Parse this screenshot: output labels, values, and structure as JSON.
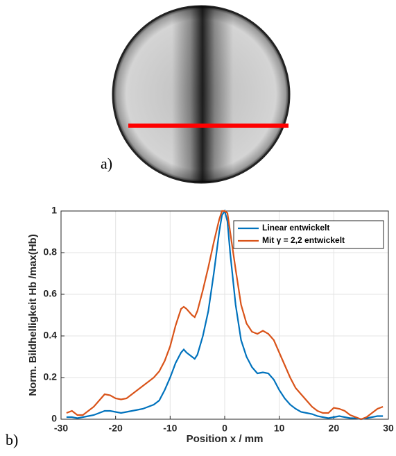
{
  "panel_labels": [
    "a)",
    "b)"
  ],
  "chart_data": {
    "type": "line",
    "xlabel": "Position x / mm",
    "ylabel": "Norm. Bildhelligkeit Hb /max(Hb)",
    "x": [
      -29,
      -28,
      -27,
      -26,
      -25,
      -24,
      -23,
      -22,
      -21,
      -20,
      -19,
      -18,
      -17,
      -16,
      -15,
      -14,
      -13,
      -12,
      -11,
      -10,
      -9,
      -8,
      -7.5,
      -7,
      -6,
      -5.5,
      -5,
      -4,
      -3,
      -2,
      -1,
      -0.5,
      0,
      0.5,
      1,
      2,
      3,
      4,
      5,
      6,
      7,
      8,
      9,
      10,
      11,
      12,
      13,
      14,
      15,
      16,
      17,
      18,
      19,
      20,
      21,
      22,
      23,
      24,
      25,
      26,
      27,
      28,
      29
    ],
    "series": [
      {
        "name": "Linear entwickelt",
        "color": "#0072bd",
        "values": [
          0.01,
          0.01,
          0.005,
          0.01,
          0.015,
          0.02,
          0.03,
          0.04,
          0.04,
          0.035,
          0.03,
          0.035,
          0.04,
          0.045,
          0.05,
          0.06,
          0.07,
          0.09,
          0.14,
          0.2,
          0.27,
          0.32,
          0.335,
          0.32,
          0.3,
          0.29,
          0.31,
          0.4,
          0.52,
          0.7,
          0.9,
          0.98,
          1,
          0.95,
          0.8,
          0.55,
          0.38,
          0.3,
          0.25,
          0.22,
          0.225,
          0.22,
          0.19,
          0.14,
          0.1,
          0.07,
          0.05,
          0.035,
          0.03,
          0.025,
          0.015,
          0.01,
          0.005,
          0.01,
          0.015,
          0.01,
          0.005,
          0.005,
          0,
          0.005,
          0.01,
          0.015,
          0.015
        ]
      },
      {
        "name": "Mit γ = 2,2 entwickelt",
        "color": "#d95319",
        "values": [
          0.03,
          0.04,
          0.02,
          0.02,
          0.04,
          0.06,
          0.09,
          0.12,
          0.115,
          0.1,
          0.095,
          0.1,
          0.12,
          0.14,
          0.16,
          0.18,
          0.2,
          0.23,
          0.28,
          0.35,
          0.45,
          0.53,
          0.54,
          0.53,
          0.5,
          0.49,
          0.52,
          0.62,
          0.73,
          0.85,
          0.96,
          1,
          1,
          0.99,
          0.9,
          0.72,
          0.55,
          0.46,
          0.42,
          0.41,
          0.425,
          0.41,
          0.38,
          0.32,
          0.26,
          0.2,
          0.15,
          0.12,
          0.09,
          0.06,
          0.04,
          0.03,
          0.03,
          0.055,
          0.05,
          0.04,
          0.02,
          0.01,
          0,
          0.01,
          0.03,
          0.05,
          0.06
        ]
      }
    ],
    "xlim": [
      -30,
      30
    ],
    "xticks": [
      -30,
      -20,
      -10,
      0,
      10,
      20,
      30
    ],
    "ylim": [
      0,
      1
    ],
    "yticks": [
      0,
      0.2,
      0.4,
      0.6,
      0.8,
      1
    ],
    "grid": true,
    "legend": "upper right"
  }
}
